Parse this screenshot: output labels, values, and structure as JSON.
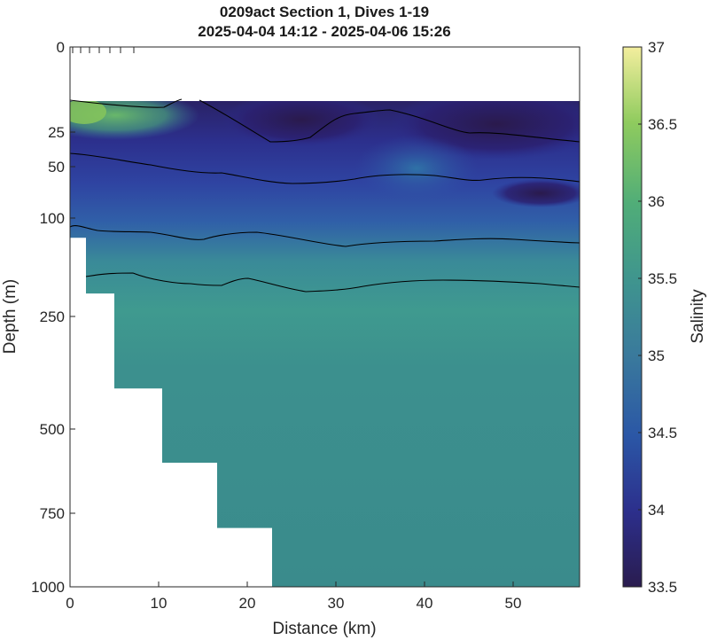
{
  "chart_data": {
    "type": "heatmap",
    "title_lines": [
      "0209act Section 1, Dives 1-19",
      "2025-04-04 14:12 - 2025-04-06 15:26"
    ],
    "xlabel": "Distance (km)",
    "ylabel": "Depth (m)",
    "colorbar_label": "Salinity",
    "xlim": [
      0,
      57.5
    ],
    "x_ticks": [
      0,
      10,
      20,
      30,
      40,
      50
    ],
    "x_tick_labels": [
      "0",
      "10",
      "20",
      "30",
      "40",
      "50"
    ],
    "y_ticks": [
      0,
      25,
      50,
      100,
      250,
      500,
      750,
      1000
    ],
    "y_tick_labels": [
      "0",
      "25",
      "50",
      "100",
      "250",
      "500",
      "750",
      "1000"
    ],
    "y_scale": "nonlinear (depth axis compressed at depth)",
    "colorbar_range": [
      33.5,
      37
    ],
    "colorbar_ticks": [
      33.5,
      34,
      34.5,
      35,
      35.5,
      36,
      36.5,
      37
    ],
    "colorbar_tick_labels": [
      "33.5",
      "34",
      "34.5",
      "35",
      "35.5",
      "36",
      "36.5",
      "37"
    ],
    "colormap": "haline (dark navy to blue, teal, green, pale yellow)",
    "dive_markers_km": [
      0.3,
      1.2,
      2.2,
      3.3,
      4.5,
      5.7,
      7.2
    ],
    "contour_levels_note": "black salinity contour lines",
    "contour_count": 4,
    "bottom_profile_km_depth": [
      [
        0,
        130
      ],
      [
        1.8,
        130
      ],
      [
        1.8,
        215
      ],
      [
        5.0,
        215
      ],
      [
        5.0,
        410
      ],
      [
        10.4,
        410
      ],
      [
        10.4,
        600
      ],
      [
        16.6,
        600
      ],
      [
        16.6,
        800
      ],
      [
        22.8,
        800
      ],
      [
        22.8,
        1000
      ]
    ],
    "field_summary": {
      "surface_west_salinity": 36.2,
      "surface_east_salinity": 33.6,
      "mixed_layer_salinity": 34.0,
      "thermocline_salinity": 35.3,
      "deep_salinity": 35.0
    }
  },
  "colors": {
    "background": "#ffffff",
    "axis": "#262626",
    "contour": "#000000",
    "deep_water": "#3a8f8e"
  }
}
